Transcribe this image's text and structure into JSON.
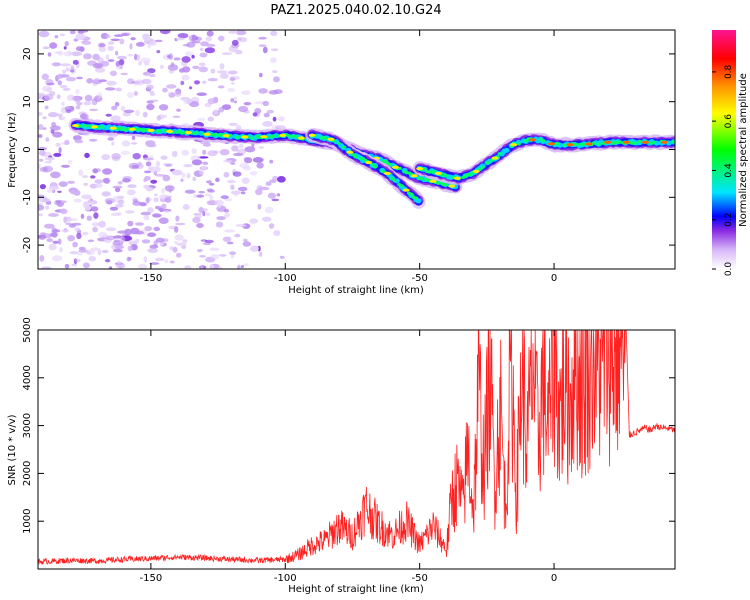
{
  "title": "PAZ1.2025.040.02.10.G24",
  "chart_data": [
    {
      "type": "heatmap",
      "xlabel": "Height of straight line (km)",
      "ylabel": "Frequency (Hz)",
      "xlim": [
        -192,
        45
      ],
      "ylim": [
        -25,
        25
      ],
      "xticks": [
        -150,
        -100,
        -50,
        0
      ],
      "yticks": [
        -20,
        -10,
        0,
        10,
        20
      ],
      "grid": false,
      "colorbar": {
        "label": "Normalized spectral amplitude",
        "range": [
          0,
          0.97
        ],
        "ticks": [
          0.0,
          0.2,
          0.4,
          0.6,
          0.8
        ],
        "colors": [
          "#ffffff",
          "#d8b8f8",
          "#8a2be2",
          "#0000ff",
          "#00e5ff",
          "#00ff00",
          "#ffff00",
          "#ff9900",
          "#ff0000",
          "#ff1493"
        ]
      },
      "ridges": [
        {
          "name": "",
          "x": [
            -178,
            -165,
            -150,
            -135,
            -125,
            -112,
            -100,
            -90,
            -80,
            -72,
            -65,
            -58,
            -50,
            -42,
            -36
          ],
          "y": [
            5,
            4.5,
            4,
            3.5,
            3,
            2.5,
            3,
            2,
            1,
            -1,
            -2,
            -4,
            -6,
            -7,
            -8
          ]
        },
        {
          "name": "",
          "x": [
            -90,
            -82,
            -75,
            -68,
            -62,
            -56,
            -50
          ],
          "y": [
            3,
            2,
            -1,
            -3,
            -5,
            -8,
            -11
          ]
        },
        {
          "name": "",
          "x": [
            -50,
            -43,
            -36,
            -30,
            -25,
            -20,
            -15,
            -10,
            -5,
            0,
            10,
            20,
            30,
            40,
            45
          ],
          "y": [
            -4,
            -5,
            -6,
            -5,
            -3,
            -1,
            1,
            2,
            2,
            1,
            1,
            1.5,
            1.5,
            1.5,
            1.5
          ]
        }
      ],
      "noise_region": {
        "x": [
          -192,
          -100
        ],
        "y": [
          -25,
          25
        ]
      }
    },
    {
      "type": "line",
      "xlabel": "Height of straight line (km)",
      "ylabel": "SNR (10 * v/v)",
      "xlim": [
        -192,
        45
      ],
      "ylim": [
        0,
        5000
      ],
      "xticks": [
        -150,
        -100,
        -50,
        0
      ],
      "yticks": [
        1000,
        2000,
        3000,
        4000,
        5000
      ],
      "grid": false,
      "series": [
        {
          "name": "",
          "color": "#ff2020",
          "x": [
            -192,
            -180,
            -170,
            -160,
            -150,
            -140,
            -130,
            -120,
            -110,
            -100,
            -95,
            -90,
            -85,
            -80,
            -75,
            -70,
            -65,
            -60,
            -55,
            -50,
            -45,
            -40,
            -38,
            -36,
            -34,
            -32,
            -30,
            -28,
            -26,
            -24,
            -22,
            -20,
            -18,
            -16,
            -14,
            -12,
            -10,
            -8,
            -6,
            -4,
            -2,
            0,
            2,
            4,
            6,
            8,
            10,
            12,
            14,
            16,
            18,
            20,
            22,
            24,
            26,
            27,
            28,
            30,
            32,
            34,
            36,
            38,
            40,
            42,
            45
          ],
          "y": [
            150,
            180,
            170,
            200,
            220,
            250,
            230,
            200,
            180,
            200,
            300,
            500,
            600,
            900,
            700,
            1300,
            900,
            700,
            1000,
            500,
            900,
            400,
            1500,
            1800,
            1300,
            2500,
            1200,
            3800,
            2000,
            4300,
            1800,
            3500,
            1200,
            4700,
            1500,
            4200,
            2500,
            4400,
            2700,
            4000,
            3000,
            4700,
            3200,
            4000,
            3500,
            4600,
            3800,
            4000,
            4800,
            4300,
            4500,
            4900,
            4400,
            4900,
            4500,
            4700,
            2800,
            2850,
            2900,
            2950,
            2900,
            3000,
            2950,
            2950,
            2900
          ]
        }
      ]
    }
  ]
}
